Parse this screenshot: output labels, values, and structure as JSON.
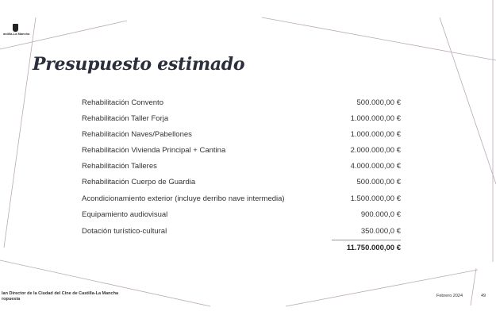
{
  "logo": {
    "text": "astilla-La Mancha"
  },
  "title": "Presupuesto estimado",
  "budget": {
    "items": [
      {
        "label": "Rehabilitación Convento",
        "amount": "500.000,00 €"
      },
      {
        "label": "Rehabilitación Taller Forja",
        "amount": "1.000.000,00 €"
      },
      {
        "label": "Rehabilitación Naves/Pabellones",
        "amount": "1.000.000,00 €"
      },
      {
        "label": "Rehabilitación Vivienda Principal + Cantina",
        "amount": "2.000.000,00 €"
      },
      {
        "label": "Rehabilitación Talleres",
        "amount": "4.000.000,00 €"
      },
      {
        "label": "Rehabilitación Cuerpo de Guardia",
        "amount": "500.000,00 €"
      },
      {
        "label": "Acondicionamiento exterior (incluye derribo nave intermedia)",
        "amount": "1.500.000,00 €"
      },
      {
        "label": "Equipamiento audiovisual",
        "amount": "900.000,0 €"
      },
      {
        "label": "Dotación turístico-cultural",
        "amount": "350.000,0 €"
      }
    ],
    "total": "11.750.000,00 €"
  },
  "footer": {
    "line1": "lan Director de la Ciudad del Cine de Castilla-La Mancha",
    "line2": "ropuesta",
    "date": "Febrero 2024",
    "page": "49"
  }
}
